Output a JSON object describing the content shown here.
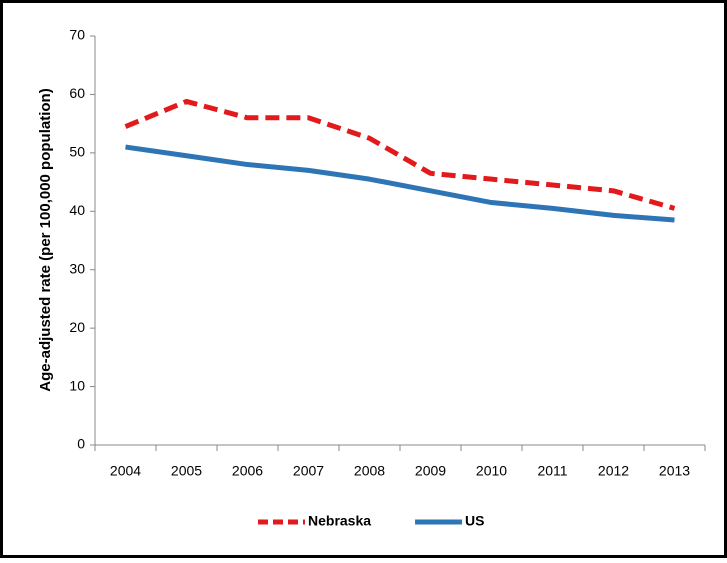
{
  "chart_data": {
    "type": "line",
    "y_label": "Age-adjusted rate (per 100,000 population)",
    "categories": [
      "2004",
      "2005",
      "2006",
      "2007",
      "2008",
      "2009",
      "2010",
      "2011",
      "2012",
      "2013"
    ],
    "series": [
      {
        "name": "Nebraska",
        "color": "#e31a1c",
        "dashed": true,
        "values": [
          54.5,
          58.8,
          56,
          56,
          52.5,
          46.5,
          45.5,
          44.5,
          43.5,
          40.5
        ]
      },
      {
        "name": "US",
        "color": "#2e75b6",
        "dashed": false,
        "values": [
          51,
          49.5,
          48,
          47,
          45.5,
          43.5,
          41.5,
          40.5,
          39.3,
          38.5
        ]
      }
    ],
    "ylim": [
      0,
      70
    ],
    "yticks": [
      0,
      10,
      20,
      30,
      40,
      50,
      60,
      70
    ],
    "legend": "bottom",
    "grid": false
  }
}
